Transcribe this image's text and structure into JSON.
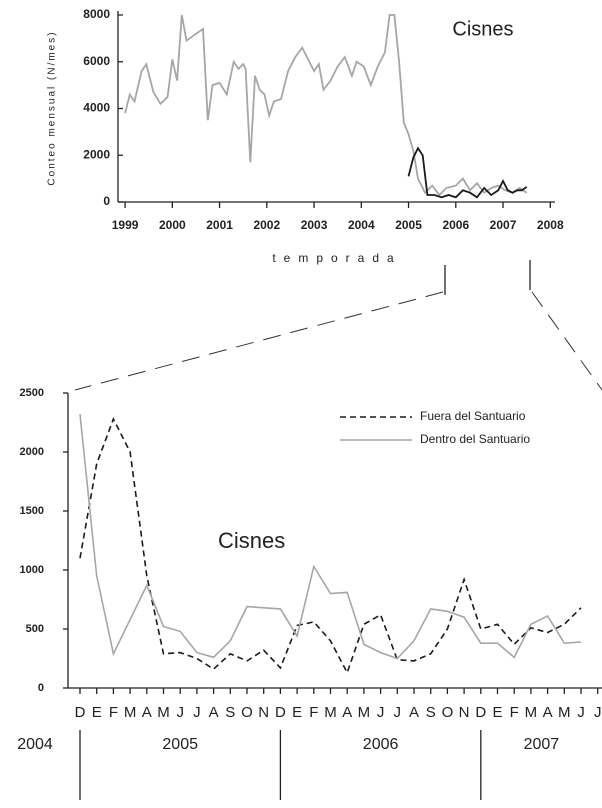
{
  "chart_data": [
    {
      "type": "line",
      "title": "Cisnes",
      "y_label": "Conteo mensual (N/mes)",
      "x_label": "temporada",
      "xlim": [
        1998.85,
        2008.1
      ],
      "xticks": [
        1999,
        2000,
        2001,
        2002,
        2003,
        2004,
        2005,
        2006,
        2007,
        2008
      ],
      "ylim": [
        0,
        8000
      ],
      "yticks": [
        0,
        2000,
        4000,
        6000,
        8000
      ],
      "series": [
        {
          "color": "#a6a6a6",
          "x": [
            1999.0,
            1999.1,
            1999.2,
            1999.35,
            1999.45,
            1999.6,
            1999.75,
            1999.9,
            2000.0,
            2000.1,
            2000.2,
            2000.3,
            2000.5,
            2000.65,
            2000.75,
            2000.85,
            2001.0,
            2001.15,
            2001.3,
            2001.4,
            2001.5,
            2001.55,
            2001.65,
            2001.75,
            2001.85,
            2001.95,
            2002.05,
            2002.15,
            2002.3,
            2002.45,
            2002.6,
            2002.75,
            2002.85,
            2003.0,
            2003.1,
            2003.2,
            2003.35,
            2003.5,
            2003.65,
            2003.8,
            2003.9,
            2004.05,
            2004.2,
            2004.35,
            2004.5,
            2004.6,
            2004.7,
            2004.8,
            2004.9,
            2005.0,
            2005.1,
            2005.2,
            2005.35,
            2005.5,
            2005.65,
            2005.8,
            2006.0,
            2006.15,
            2006.3,
            2006.45,
            2006.6,
            2006.75,
            2006.9,
            2007.05,
            2007.2,
            2007.35,
            2007.5
          ],
          "values": [
            3800,
            4600,
            4300,
            5600,
            5900,
            4700,
            4200,
            4500,
            6100,
            5200,
            8000,
            6900,
            7200,
            7400,
            3500,
            5000,
            5100,
            4600,
            6000,
            5700,
            5900,
            5700,
            1700,
            5400,
            4800,
            4600,
            3700,
            4300,
            4400,
            5600,
            6200,
            6600,
            6200,
            5600,
            5900,
            4800,
            5200,
            5800,
            6200,
            5400,
            6000,
            5800,
            5000,
            5800,
            6400,
            8000,
            8000,
            6000,
            3400,
            2900,
            2200,
            1000,
            400,
            700,
            300,
            600,
            700,
            1000,
            500,
            800,
            400,
            600,
            700,
            500,
            400,
            600,
            400
          ]
        },
        {
          "color": "#1a1a1a",
          "x": [
            2005.0,
            2005.1,
            2005.2,
            2005.3,
            2005.4,
            2005.55,
            2005.7,
            2005.85,
            2006.0,
            2006.15,
            2006.3,
            2006.45,
            2006.6,
            2006.75,
            2006.9,
            2007.0,
            2007.1,
            2007.2,
            2007.3,
            2007.4,
            2007.5
          ],
          "values": [
            1100,
            1900,
            2300,
            2000,
            300,
            300,
            200,
            300,
            200,
            500,
            400,
            200,
            600,
            300,
            500,
            900,
            500,
            400,
            500,
            500,
            650
          ]
        }
      ]
    },
    {
      "type": "line",
      "title": "Cisnes",
      "categories": [
        "D",
        "E",
        "F",
        "M",
        "A",
        "M",
        "J",
        "J",
        "A",
        "S",
        "O",
        "N",
        "D",
        "E",
        "F",
        "M",
        "A",
        "M",
        "J",
        "J",
        "A",
        "S",
        "O",
        "N",
        "D",
        "E",
        "F",
        "M",
        "A",
        "M",
        "J",
        "J"
      ],
      "year_labels": [
        "2004",
        "2005",
        "2006",
        "2007"
      ],
      "ylim": [
        0,
        2500
      ],
      "yticks": [
        0,
        500,
        1000,
        1500,
        2000,
        2500
      ],
      "legend": "upper right",
      "series": [
        {
          "name": "Fuera del Santuario",
          "color": "#1a1a1a",
          "style": "dashed",
          "values": [
            1100,
            1900,
            2280,
            2000,
            950,
            290,
            300,
            250,
            160,
            290,
            230,
            320,
            170,
            530,
            560,
            400,
            130,
            540,
            620,
            240,
            230,
            290,
            500,
            920,
            500,
            540,
            370,
            510,
            470,
            540,
            680,
            null
          ]
        },
        {
          "name": "Dentro del Santuario",
          "color": "#a6a6a6",
          "style": "solid",
          "values": [
            2320,
            950,
            290,
            580,
            870,
            520,
            480,
            300,
            260,
            400,
            690,
            680,
            670,
            440,
            1030,
            800,
            810,
            370,
            300,
            250,
            400,
            670,
            650,
            600,
            380,
            380,
            260,
            540,
            610,
            380,
            390,
            null
          ]
        }
      ]
    }
  ]
}
